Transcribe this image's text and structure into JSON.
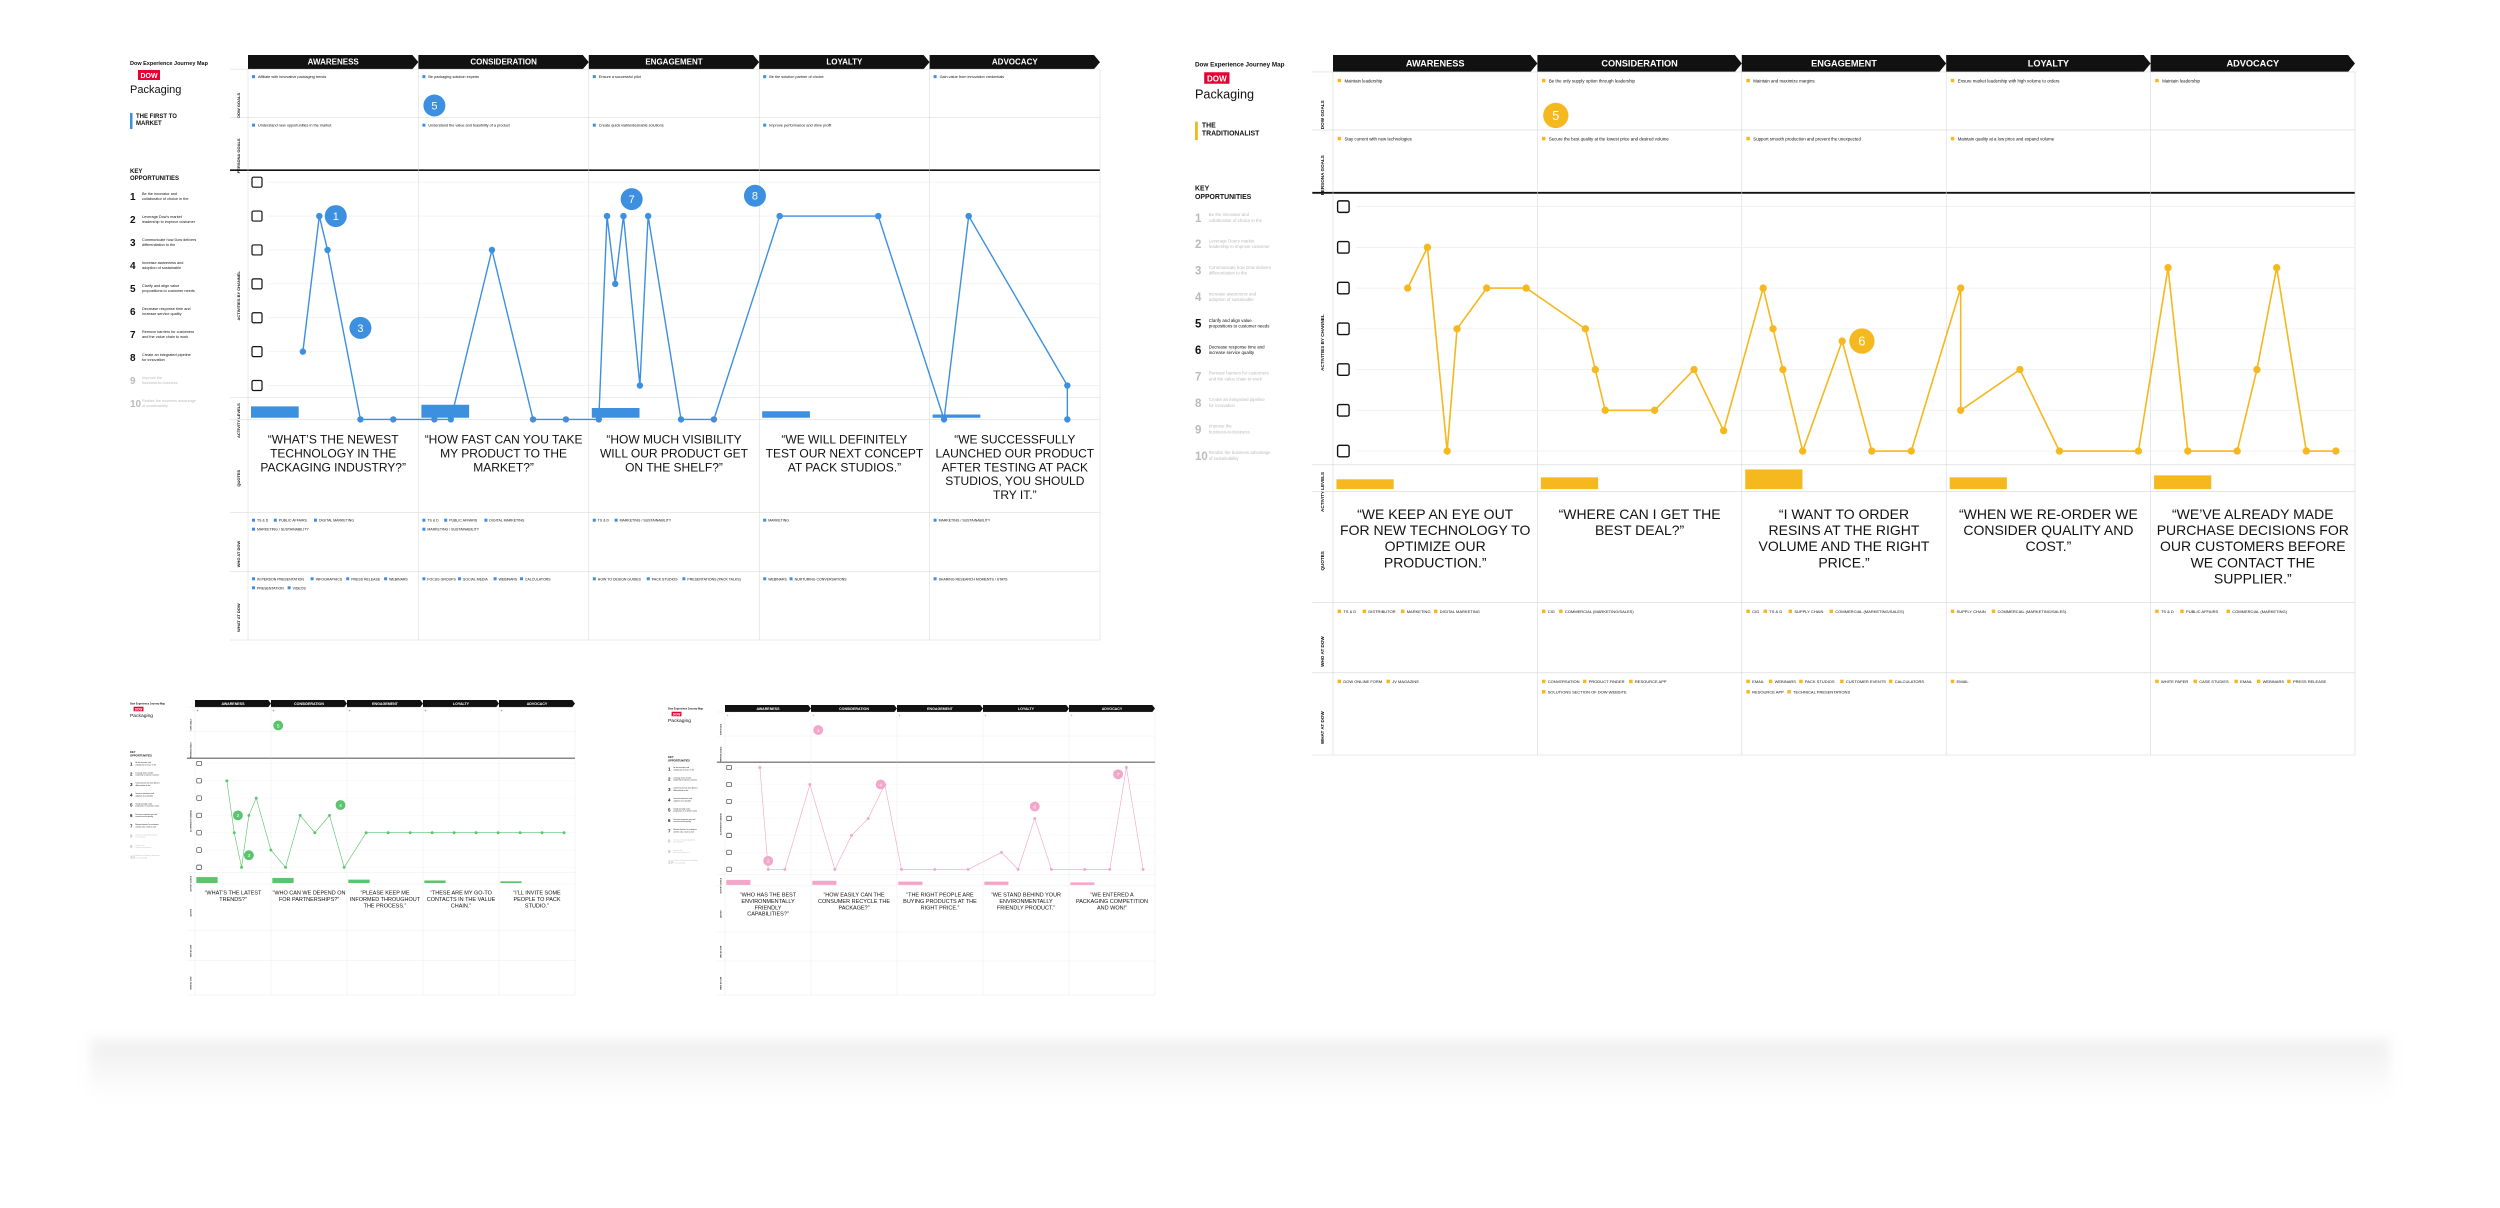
{
  "colors": {
    "blue": "#3d8fe0",
    "yellow": "#f5b81f",
    "green": "#5cc46c",
    "pink": "#f2a6c9",
    "black": "#111111",
    "grid": "#d6d6d6"
  },
  "stages": [
    "AWARENESS",
    "CONSIDERATION",
    "ENGAGEMENT",
    "LOYALTY",
    "ADVOCACY"
  ],
  "row_labels": {
    "dow_goals": "DOW GOALS",
    "persona_goals": "PERSONA GOALS",
    "activities": "ACTIVITIES BY CHANNEL",
    "activity_levels": "ACTIVITY LEVELS",
    "quotes": "QUOTES",
    "who": "WHO AT DOW",
    "what": "WHAT AT DOW"
  },
  "sidebar_common": {
    "map_title": "Dow Experience Journey Map",
    "brand": "DOW",
    "product": "Packaging",
    "key_heading": "KEY OPPORTUNITIES"
  },
  "maps": [
    {
      "id": "first-to-market",
      "accent": "blue",
      "persona": "THE FIRST TO MARKET",
      "dow_goals": [
        "Affiliate with innovative packaging trends",
        "Be packaging solution experts",
        "Ensure a successful pilot",
        "Be the solution partner of choice",
        "Gain value from innovation credentials"
      ],
      "persona_goals": [
        "Understand new opportunities in the market",
        "Understand the value and feasibility of a product",
        "Create quick viable/desirable solutions",
        "Improve performance and drive profit",
        ""
      ],
      "goal_badge": {
        "label": "5",
        "stage": 1
      },
      "activity_points": [
        [
          0.2,
          5
        ],
        [
          0.3,
          1
        ],
        [
          0.35,
          2
        ],
        [
          0.55,
          7
        ],
        [
          0.75,
          7
        ],
        [
          1.0,
          7
        ],
        [
          1.1,
          7
        ],
        [
          1.35,
          2
        ],
        [
          1.6,
          7
        ],
        [
          1.8,
          7
        ],
        [
          2.0,
          7
        ],
        [
          2.05,
          1
        ],
        [
          2.1,
          3
        ],
        [
          2.15,
          1
        ],
        [
          2.25,
          6
        ],
        [
          2.3,
          1
        ],
        [
          2.5,
          7
        ],
        [
          2.7,
          7
        ],
        [
          3.1,
          1
        ],
        [
          3.7,
          1
        ],
        [
          4.1,
          7
        ],
        [
          4.25,
          1
        ],
        [
          4.85,
          6
        ],
        [
          4.85,
          7
        ]
      ],
      "activity_badges": [
        {
          "label": "1",
          "x": 0.4,
          "y": 1
        },
        {
          "label": "3",
          "x": 0.55,
          "y": 4.3
        },
        {
          "label": "7",
          "x": 2.2,
          "y": 0.5
        },
        {
          "label": "8",
          "x": 2.95,
          "y": 0.4
        }
      ],
      "activity_levels": [
        0.7,
        0.8,
        0.6,
        0.4,
        0.2
      ],
      "quotes": [
        "“WHAT’S THE NEWEST TECHNOLOGY IN THE PACKAGING INDUSTRY?”",
        "“HOW FAST CAN YOU TAKE MY PRODUCT TO THE MARKET?”",
        "“HOW MUCH VISIBILITY WILL OUR PRODUCT GET ON THE SHELF?”",
        "“WE WILL DEFINITELY TEST OUR NEXT CONCEPT AT PACK STUDIOS.”",
        "“WE SUCCESSFULLY LAUNCHED OUR PRODUCT AFTER TESTING AT PACK STUDIOS, YOU SHOULD TRY IT.”"
      ],
      "who": [
        [
          "TS & D",
          "PUBLIC AFFAIRS",
          "DIGITAL MARKETING",
          "MARKETING / SUSTAINABILITY"
        ],
        [
          "TS & D",
          "PUBLIC AFFAIRS",
          "DIGITAL MARKETING",
          "MARKETING / SUSTAINABILITY"
        ],
        [
          "TS & D",
          "MARKETING / SUSTAINABILITY"
        ],
        [
          "MARKETING"
        ],
        [
          "MARKETING / SUSTAINABILITY"
        ]
      ],
      "what": [
        [
          "IN PERSON PRESENTATION",
          "INFOGRAPHICS",
          "PRESS RELEASE",
          "WEBINARS",
          "PRESENTATION",
          "VIDEOS"
        ],
        [
          "FOCUS GROUPS",
          "SOCIAL MEDIA",
          "WEBINARS",
          "CALCULATORS"
        ],
        [
          "HOW TO DESIGN GUIDES",
          "PACK STUDIOS",
          "PRESENTATIONS (PACK TALKS)"
        ],
        [
          "WEBINARS",
          "NURTURING CONVERSATIONS"
        ],
        [
          "SHARING RESEARCH MOMENTS / STATS"
        ]
      ]
    },
    {
      "id": "traditionalist",
      "accent": "yellow",
      "persona": "THE TRADITIONALIST",
      "dow_goals": [
        "Maintain leadership",
        "Be the only supply option through leadership",
        "Maintain and maximize margins",
        "Ensure market leadership with high volume to orders",
        "Maintain leadership"
      ],
      "persona_goals": [
        "Stay current with new technologies",
        "Secure the best quality at the lowest price and desired volume",
        "Support smooth production and prevent the unexpected",
        "Maintain quality at a low price and expand volume",
        ""
      ],
      "goal_badge": {
        "label": "5",
        "stage": 1
      },
      "activity_points": [
        [
          0.25,
          2
        ],
        [
          0.35,
          1
        ],
        [
          0.45,
          6
        ],
        [
          0.5,
          3
        ],
        [
          0.65,
          2
        ],
        [
          0.85,
          2
        ],
        [
          1.15,
          3
        ],
        [
          1.2,
          4
        ],
        [
          1.25,
          5
        ],
        [
          1.5,
          5
        ],
        [
          1.7,
          4
        ],
        [
          1.85,
          5.5
        ],
        [
          2.05,
          2
        ],
        [
          2.1,
          3
        ],
        [
          2.15,
          4
        ],
        [
          2.25,
          6
        ],
        [
          2.45,
          3.3
        ],
        [
          2.6,
          6
        ],
        [
          2.8,
          6
        ],
        [
          3.05,
          2
        ],
        [
          3.05,
          5
        ],
        [
          3.35,
          4
        ],
        [
          3.55,
          6
        ],
        [
          3.95,
          6
        ],
        [
          4.1,
          1.5
        ],
        [
          4.2,
          6
        ],
        [
          4.45,
          6
        ],
        [
          4.55,
          4
        ],
        [
          4.65,
          1.5
        ],
        [
          4.8,
          6
        ],
        [
          4.95,
          6
        ]
      ],
      "activity_badges": [
        {
          "label": "6",
          "x": 2.55,
          "y": 3.3
        }
      ],
      "activity_levels": [
        0.5,
        0.6,
        1.0,
        0.6,
        0.7
      ],
      "quotes": [
        "“WE KEEP AN EYE OUT FOR NEW TECHNOLOGY TO OPTIMIZE OUR PRODUCTION.”",
        "“WHERE CAN I GET THE BEST DEAL?”",
        "“I WANT TO ORDER RESINS AT THE RIGHT VOLUME AND THE RIGHT PRICE.”",
        "“WHEN WE RE-ORDER WE CONSIDER QUALITY AND COST.”",
        "“WE’VE ALREADY MADE PURCHASE DECISIONS FOR OUR CUSTOMERS BEFORE WE CONTACT THE SUPPLIER.”"
      ],
      "who": [
        [
          "TS & D",
          "DISTRIBUTOR",
          "MARKETING",
          "DIGITAL MARKETING"
        ],
        [
          "CIG",
          "COMMERCIAL (MARKETING/SALES)"
        ],
        [
          "CIG",
          "TS & D",
          "SUPPLY CHAIN",
          "COMMERCIAL (MARKETING/SALES)"
        ],
        [
          "SUPPLY CHAIN",
          "COMMERCIAL (MARKETING/SALES)"
        ],
        [
          "TS & D",
          "PUBLIC AFFAIRS",
          "COMMERCIAL (MARKETING)"
        ]
      ],
      "what": [
        [
          "DOW ONLINE FORM",
          "JV MAGAZINE"
        ],
        [
          "CONVERSATION",
          "PRODUCT FINDER",
          "RESOURCE APP",
          "SOLUTIONS SECTION OF DOW WEBSITE"
        ],
        [
          "EMAIL",
          "WEBINARS",
          "PACK STUDIOS",
          "CUSTOMER EVENTS",
          "CALCULATORS",
          "RESOURCE APP",
          "TECHNICAL PRESENTATIONS"
        ],
        [
          "EMAIL"
        ],
        [
          "WHITE PAPER",
          "CASE STUDIES",
          "EMAIL",
          "WEBINARS",
          "PRESS RELEASE"
        ]
      ]
    },
    {
      "id": "green-persona",
      "accent": "green",
      "persona": "",
      "dow_goals": [
        "",
        "",
        "",
        "",
        ""
      ],
      "persona_goals": [
        "",
        "",
        "",
        "",
        ""
      ],
      "goal_badge": {
        "label": "5",
        "stage": 1
      },
      "activity_points": [
        [
          0.3,
          1
        ],
        [
          0.4,
          4
        ],
        [
          0.5,
          6
        ],
        [
          0.6,
          3
        ],
        [
          0.7,
          2
        ],
        [
          0.9,
          5
        ],
        [
          1.1,
          6
        ],
        [
          1.3,
          3
        ],
        [
          1.5,
          4
        ],
        [
          1.7,
          3
        ],
        [
          1.9,
          6
        ],
        [
          2.2,
          4
        ],
        [
          2.5,
          4
        ],
        [
          2.8,
          4
        ],
        [
          3.1,
          4
        ],
        [
          3.4,
          4
        ],
        [
          3.7,
          4
        ],
        [
          4.0,
          4
        ],
        [
          4.3,
          4
        ],
        [
          4.6,
          4
        ],
        [
          4.9,
          4
        ]
      ],
      "activity_badges": [
        {
          "label": "2",
          "x": 0.45,
          "y": 3
        },
        {
          "label": "3",
          "x": 0.6,
          "y": 5.3
        },
        {
          "label": "4",
          "x": 1.85,
          "y": 2.4
        }
      ],
      "activity_levels": [
        0.7,
        0.6,
        0.4,
        0.3,
        0.2
      ],
      "quotes": [
        "“WHAT’S THE LATEST TRENDS?”",
        "“WHO CAN WE DEPEND ON FOR PARTNERSHIPS?”",
        "“PLEASE KEEP ME INFORMED THROUGHOUT THE PROCESS.”",
        "“THESE ARE MY GO-TO CONTACTS IN THE VALUE CHAIN.”",
        "“I’LL INVITE SOME PEOPLE TO PACK STUDIO.”"
      ],
      "who": [
        [],
        [],
        [],
        [],
        []
      ],
      "what": [
        [],
        [],
        [],
        [],
        []
      ]
    },
    {
      "id": "pink-persona",
      "accent": "pink",
      "persona": "",
      "dow_goals": [
        "",
        "",
        "",
        "",
        ""
      ],
      "persona_goals": [
        "",
        "",
        "",
        "",
        ""
      ],
      "goal_badge": {
        "label": "1",
        "stage": 1
      },
      "activity_points": [
        [
          0.3,
          0
        ],
        [
          0.4,
          6
        ],
        [
          0.6,
          6
        ],
        [
          0.9,
          1
        ],
        [
          1.2,
          6
        ],
        [
          1.4,
          4
        ],
        [
          1.6,
          3
        ],
        [
          1.8,
          1
        ],
        [
          2.0,
          6
        ],
        [
          2.4,
          6
        ],
        [
          2.8,
          6
        ],
        [
          3.2,
          5
        ],
        [
          3.4,
          6
        ],
        [
          3.6,
          3
        ],
        [
          3.8,
          6
        ],
        [
          4.2,
          6
        ],
        [
          4.5,
          6
        ],
        [
          4.7,
          0
        ],
        [
          4.9,
          6
        ]
      ],
      "activity_badges": [
        {
          "label": "2",
          "x": 0.4,
          "y": 5.5
        },
        {
          "label": "4",
          "x": 1.75,
          "y": 1
        },
        {
          "label": "6",
          "x": 3.6,
          "y": 2.3
        },
        {
          "label": "7",
          "x": 4.6,
          "y": 0.4
        }
      ],
      "activity_levels": [
        0.6,
        0.5,
        0.4,
        0.4,
        0.3
      ],
      "quotes": [
        "“WHO HAS THE BEST ENVIRONMENTALLY FRIENDLY CAPABILITIES?”",
        "“HOW EASILY CAN THE CONSUMER RECYCLE THE PACKAGE?”",
        "“THE RIGHT PEOPLE ARE BUYING PRODUCTS AT THE RIGHT PRICE.”",
        "“WE STAND BEHIND YOUR ENVIRONMENTALLY FRIENDLY PRODUCT.”",
        "“WE ENTERED A PACKAGING COMPETITION AND WON!”"
      ],
      "who": [
        [],
        [],
        [],
        [],
        []
      ],
      "what": [
        [],
        [],
        [],
        [],
        []
      ]
    }
  ],
  "opportunities": [
    "Be the innovator and collaborator of choice in the industry",
    "Leverage Dow's market leadership to improve customer service",
    "Communicate how Dow delivers differentiation to the customer",
    "Increase awareness and adoption of sustainable solutions",
    "Clarify and align value propositions to customer needs",
    "Decrease response time and increase service quality",
    "Remove barriers for customers and the value chain to work with Dow",
    "Create an integrated pipeline for innovation",
    "Improve the business-to-business relationships",
    "Realize the business advantage of sustainability"
  ]
}
